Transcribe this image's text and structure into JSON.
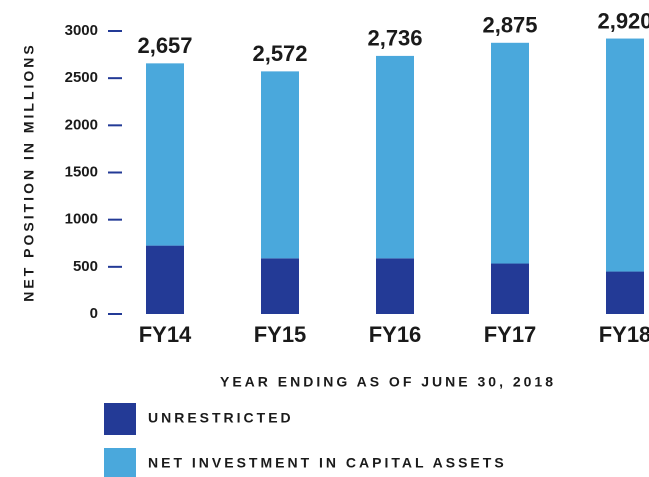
{
  "chart_data": {
    "type": "stacked_bar",
    "categories": [
      "FY14",
      "FY15",
      "FY16",
      "FY17",
      "FY18"
    ],
    "series": [
      {
        "name": "UNRESTRICTED",
        "color": "#233a96",
        "values": [
          725,
          590,
          590,
          535,
          450
        ]
      },
      {
        "name": "NET INVESTMENT IN CAPITAL ASSETS",
        "color": "#4aa8dc",
        "values": [
          1932,
          1982,
          2146,
          2340,
          2470
        ]
      }
    ],
    "totals": [
      2657,
      2572,
      2736,
      2875,
      2920
    ],
    "total_labels": [
      "2,657",
      "2,572",
      "2,736",
      "2,875",
      "2,920"
    ],
    "ylabel": "NET POSITION IN MILLIONS",
    "xlabel": "YEAR ENDING AS OF JUNE 30, 2018",
    "ylim": [
      0,
      3000
    ],
    "yticks": [
      0,
      500,
      1000,
      1500,
      2000,
      2500,
      3000
    ]
  }
}
